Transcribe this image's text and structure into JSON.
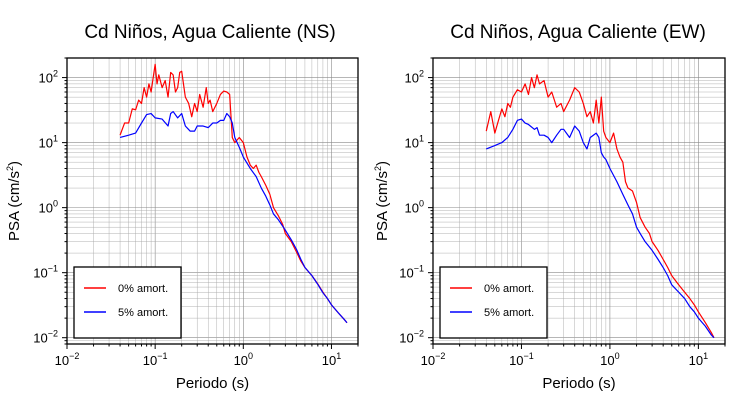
{
  "chart_data": [
    {
      "type": "line",
      "title": "Cd Niños, Agua Caliente (NS)",
      "xlabel": "Periodo (s)",
      "ylabel_prefix": "PSA (cm/s",
      "ylabel_sup": "2",
      "ylabel_suffix": ")",
      "x_scale": "log",
      "y_scale": "log",
      "xlim": [
        0.01,
        20
      ],
      "ylim": [
        0.008,
        200
      ],
      "grid": true,
      "legend_placement": "bottom-left",
      "x_ticks": [
        {
          "base": "10",
          "exp": "−2"
        },
        {
          "base": "10",
          "exp": "−1"
        },
        {
          "base": "10",
          "exp": "0"
        },
        {
          "base": "10",
          "exp": "1"
        }
      ],
      "y_ticks": [
        {
          "base": "10",
          "exp": "−2"
        },
        {
          "base": "10",
          "exp": "−1"
        },
        {
          "base": "10",
          "exp": "0"
        },
        {
          "base": "10",
          "exp": "1"
        },
        {
          "base": "10",
          "exp": "2"
        }
      ],
      "series": [
        {
          "name": "0% amort.",
          "color": "#ff0000",
          "x": [
            0.04,
            0.045,
            0.05,
            0.055,
            0.06,
            0.065,
            0.07,
            0.075,
            0.08,
            0.085,
            0.09,
            0.095,
            0.1,
            0.105,
            0.11,
            0.12,
            0.13,
            0.14,
            0.15,
            0.16,
            0.17,
            0.18,
            0.19,
            0.2,
            0.22,
            0.24,
            0.26,
            0.28,
            0.3,
            0.32,
            0.35,
            0.38,
            0.4,
            0.42,
            0.45,
            0.5,
            0.55,
            0.6,
            0.65,
            0.7,
            0.75,
            0.8,
            0.9,
            1.0,
            1.1,
            1.2,
            1.3,
            1.4,
            1.5,
            1.6,
            1.8,
            2.0,
            2.2,
            2.5,
            2.8,
            3.0,
            3.5,
            4.0,
            4.5,
            5.0,
            6.0,
            7.0,
            8.0,
            9.0,
            10.0,
            12.0,
            14.0,
            15.0
          ],
          "y": [
            13,
            20,
            20,
            33,
            32,
            45,
            40,
            70,
            50,
            80,
            60,
            100,
            160,
            80,
            110,
            70,
            90,
            50,
            120,
            110,
            60,
            70,
            120,
            125,
            50,
            40,
            25,
            40,
            30,
            55,
            35,
            70,
            40,
            45,
            30,
            40,
            55,
            62,
            60,
            55,
            12,
            10,
            12,
            10,
            6,
            4.5,
            4,
            4.5,
            3.5,
            3,
            2.2,
            1.6,
            1.0,
            0.75,
            0.55,
            0.4,
            0.3,
            0.21,
            0.15,
            0.12,
            0.09,
            0.067,
            0.05,
            0.04,
            0.032,
            0.024,
            0.019,
            0.017
          ]
        },
        {
          "name": "5% amort.",
          "color": "#0000ff",
          "x": [
            0.04,
            0.05,
            0.06,
            0.07,
            0.08,
            0.09,
            0.1,
            0.12,
            0.14,
            0.15,
            0.16,
            0.18,
            0.2,
            0.22,
            0.25,
            0.28,
            0.3,
            0.35,
            0.4,
            0.45,
            0.5,
            0.55,
            0.6,
            0.65,
            0.7,
            0.75,
            0.8,
            0.9,
            1.0,
            1.2,
            1.4,
            1.6,
            1.8,
            2.0,
            2.2,
            2.5,
            3.0,
            3.5,
            4.0,
            4.5,
            5.0,
            6.0,
            7.0,
            8.0,
            9.0,
            10.0,
            12.0,
            14.0,
            15.0
          ],
          "y": [
            12,
            13,
            14,
            20,
            27,
            28,
            24,
            23,
            18,
            28,
            30,
            24,
            28,
            18,
            15,
            15,
            18,
            18,
            17,
            20,
            20,
            22,
            22,
            28,
            25,
            20,
            12,
            8.5,
            6,
            4,
            3,
            2,
            1.5,
            1.1,
            0.8,
            0.65,
            0.45,
            0.32,
            0.23,
            0.16,
            0.12,
            0.09,
            0.066,
            0.049,
            0.04,
            0.032,
            0.024,
            0.019,
            0.017
          ]
        }
      ]
    },
    {
      "type": "line",
      "title": "Cd Niños, Agua Caliente (EW)",
      "xlabel": "Periodo (s)",
      "ylabel_prefix": "PSA (cm/s",
      "ylabel_sup": "2",
      "ylabel_suffix": ")",
      "x_scale": "log",
      "y_scale": "log",
      "xlim": [
        0.01,
        20
      ],
      "ylim": [
        0.008,
        200
      ],
      "grid": true,
      "legend_placement": "bottom-left",
      "x_ticks": [
        {
          "base": "10",
          "exp": "−2"
        },
        {
          "base": "10",
          "exp": "−1"
        },
        {
          "base": "10",
          "exp": "0"
        },
        {
          "base": "10",
          "exp": "1"
        }
      ],
      "y_ticks": [
        {
          "base": "10",
          "exp": "−2"
        },
        {
          "base": "10",
          "exp": "−1"
        },
        {
          "base": "10",
          "exp": "0"
        },
        {
          "base": "10",
          "exp": "1"
        },
        {
          "base": "10",
          "exp": "2"
        }
      ],
      "series": [
        {
          "name": "0% amort.",
          "color": "#ff0000",
          "x": [
            0.04,
            0.045,
            0.05,
            0.055,
            0.06,
            0.065,
            0.07,
            0.075,
            0.08,
            0.09,
            0.1,
            0.11,
            0.12,
            0.13,
            0.14,
            0.15,
            0.16,
            0.18,
            0.2,
            0.22,
            0.25,
            0.28,
            0.3,
            0.35,
            0.4,
            0.45,
            0.5,
            0.55,
            0.6,
            0.65,
            0.7,
            0.75,
            0.8,
            0.85,
            0.9,
            1.0,
            1.1,
            1.2,
            1.3,
            1.4,
            1.5,
            1.6,
            1.8,
            2.0,
            2.2,
            2.5,
            2.8,
            3.0,
            3.5,
            4.0,
            4.5,
            5.0,
            6.0,
            7.0,
            8.0,
            9.0,
            10.0,
            12.0,
            14.0,
            15.0
          ],
          "y": [
            15,
            30,
            14,
            22,
            33,
            25,
            40,
            35,
            50,
            65,
            60,
            80,
            55,
            100,
            70,
            110,
            80,
            90,
            50,
            60,
            35,
            40,
            30,
            45,
            70,
            60,
            40,
            25,
            30,
            20,
            45,
            20,
            50,
            15,
            12,
            10,
            14,
            8,
            6,
            5,
            2.5,
            2,
            1.8,
            1.2,
            0.7,
            0.5,
            0.4,
            0.3,
            0.22,
            0.16,
            0.12,
            0.09,
            0.065,
            0.05,
            0.04,
            0.032,
            0.025,
            0.017,
            0.012,
            0.01
          ]
        },
        {
          "name": "5% amort.",
          "color": "#0000ff",
          "x": [
            0.04,
            0.05,
            0.06,
            0.07,
            0.08,
            0.09,
            0.1,
            0.11,
            0.12,
            0.14,
            0.15,
            0.16,
            0.18,
            0.2,
            0.22,
            0.25,
            0.28,
            0.3,
            0.35,
            0.4,
            0.45,
            0.5,
            0.55,
            0.6,
            0.7,
            0.75,
            0.8,
            0.85,
            0.9,
            1.0,
            1.2,
            1.4,
            1.6,
            1.8,
            2.0,
            2.2,
            2.5,
            3.0,
            3.5,
            4.0,
            4.5,
            5.0,
            6.0,
            7.0,
            8.0,
            9.0,
            10.0,
            12.0,
            14.0,
            15.0
          ],
          "y": [
            8,
            9,
            10,
            12,
            16,
            22,
            23,
            20,
            19,
            16,
            17,
            13,
            13,
            12,
            10,
            13,
            16,
            16,
            12,
            18,
            15,
            10,
            8,
            12,
            14,
            12,
            7,
            6,
            5.5,
            4,
            2.5,
            1.6,
            1.1,
            0.8,
            0.5,
            0.4,
            0.3,
            0.22,
            0.16,
            0.12,
            0.09,
            0.065,
            0.05,
            0.04,
            0.03,
            0.025,
            0.02,
            0.015,
            0.011,
            0.01
          ]
        }
      ]
    }
  ]
}
